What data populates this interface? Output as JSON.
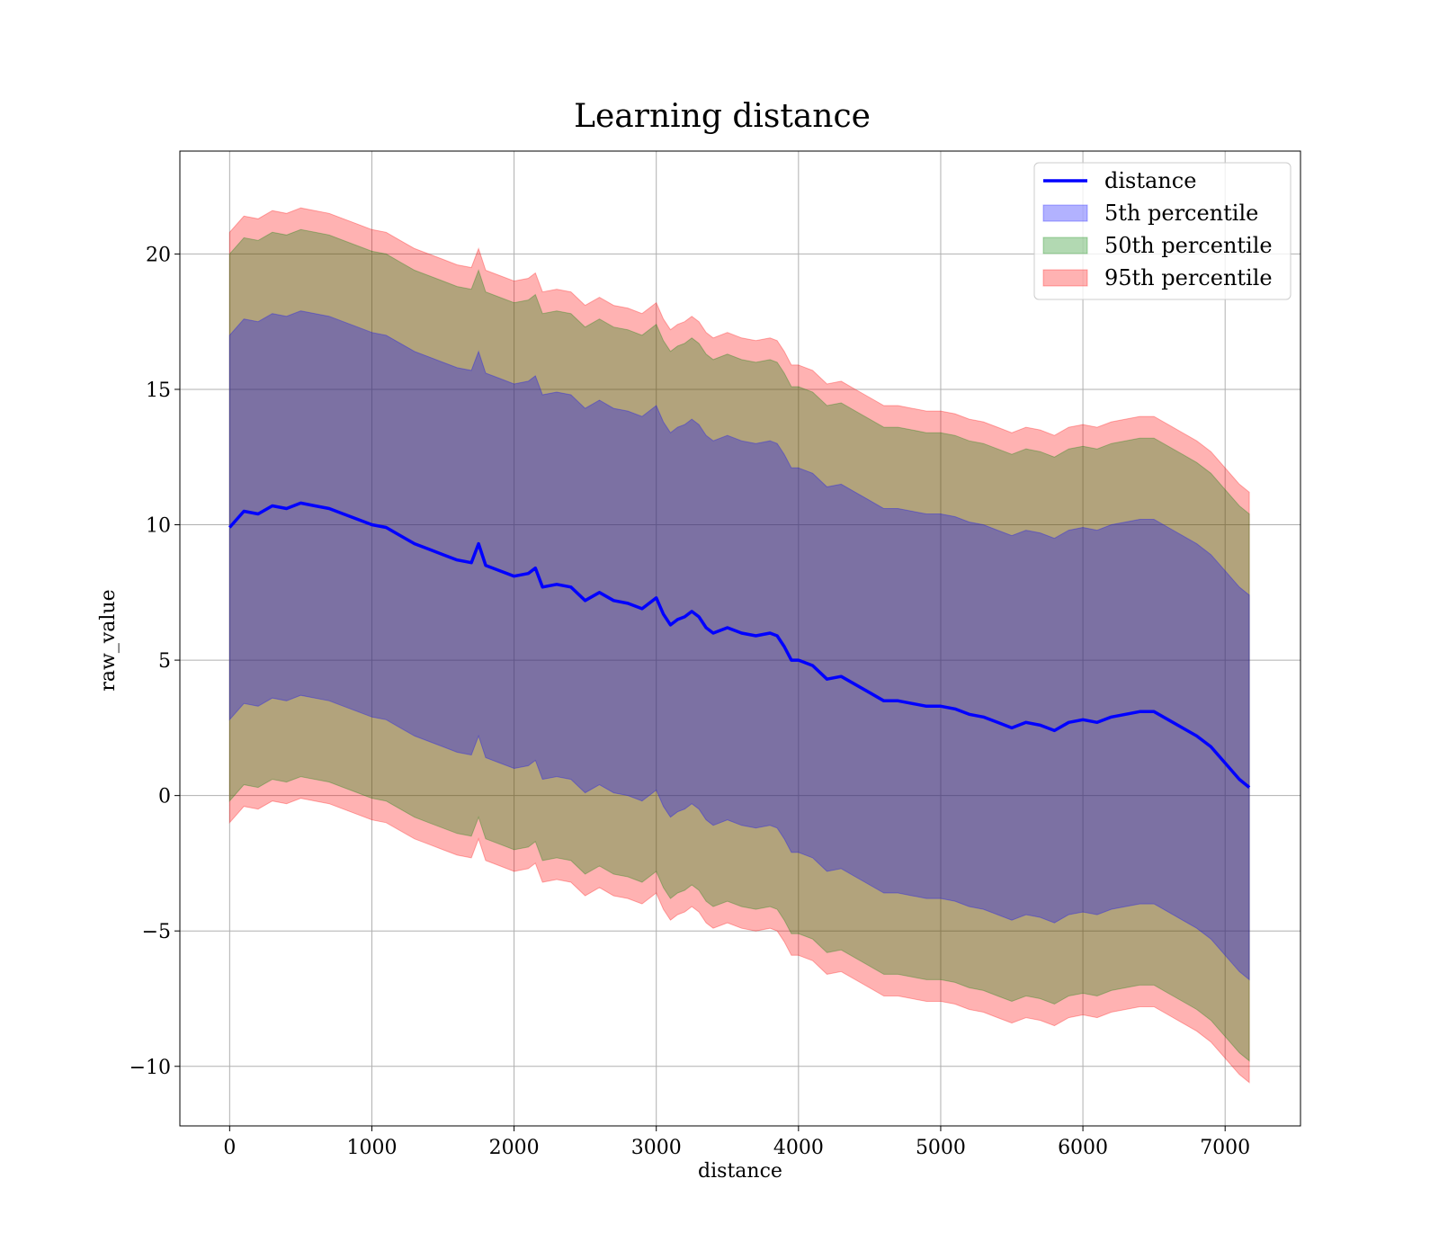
{
  "chart_data": {
    "type": "area",
    "title": "Learning distance",
    "xlabel": "distance",
    "ylabel": "raw_value",
    "xlim": [
      -350,
      7530
    ],
    "ylim": [
      -12.2,
      23.8
    ],
    "xticks": [
      0,
      1000,
      2000,
      3000,
      4000,
      5000,
      6000,
      7000
    ],
    "yticks": [
      -10,
      -5,
      0,
      5,
      10,
      15,
      20
    ],
    "xtick_labels": [
      "0",
      "1000",
      "2000",
      "3000",
      "4000",
      "5000",
      "6000",
      "7000"
    ],
    "ytick_labels": [
      "−10",
      "−5",
      "0",
      "5",
      "10",
      "15",
      "20"
    ],
    "grid": true,
    "legend_position": "upper right",
    "x": [
      0,
      100,
      200,
      300,
      400,
      500,
      600,
      700,
      800,
      900,
      1000,
      1100,
      1200,
      1300,
      1400,
      1500,
      1600,
      1700,
      1750,
      1800,
      1900,
      2000,
      2100,
      2150,
      2200,
      2300,
      2400,
      2500,
      2600,
      2700,
      2800,
      2900,
      3000,
      3050,
      3100,
      3150,
      3200,
      3250,
      3300,
      3350,
      3400,
      3500,
      3600,
      3700,
      3800,
      3850,
      3900,
      3950,
      4000,
      4100,
      4200,
      4300,
      4400,
      4500,
      4600,
      4700,
      4800,
      4900,
      5000,
      5100,
      5200,
      5300,
      5400,
      5500,
      5600,
      5700,
      5800,
      5900,
      6000,
      6100,
      6200,
      6300,
      6400,
      6500,
      6600,
      6700,
      6800,
      6900,
      7000,
      7100,
      7170
    ],
    "series": [
      {
        "name": "distance",
        "kind": "line",
        "color": "#0000ff",
        "values": [
          9.9,
          10.5,
          10.4,
          10.7,
          10.6,
          10.8,
          10.7,
          10.6,
          10.4,
          10.2,
          10.0,
          9.9,
          9.6,
          9.3,
          9.1,
          8.9,
          8.7,
          8.6,
          9.3,
          8.5,
          8.3,
          8.1,
          8.2,
          8.4,
          7.7,
          7.8,
          7.7,
          7.2,
          7.5,
          7.2,
          7.1,
          6.9,
          7.3,
          6.7,
          6.3,
          6.5,
          6.6,
          6.8,
          6.6,
          6.2,
          6.0,
          6.2,
          6.0,
          5.9,
          6.0,
          5.9,
          5.5,
          5.0,
          5.0,
          4.8,
          4.3,
          4.4,
          4.1,
          3.8,
          3.5,
          3.5,
          3.4,
          3.3,
          3.3,
          3.2,
          3.0,
          2.9,
          2.7,
          2.5,
          2.7,
          2.6,
          2.4,
          2.7,
          2.8,
          2.7,
          2.9,
          3.0,
          3.1,
          3.1,
          2.8,
          2.5,
          2.2,
          1.8,
          1.2,
          0.6,
          0.3
        ]
      },
      {
        "name": "5th percentile",
        "kind": "band",
        "color": "#0000ff",
        "upper_offset": 7.1,
        "lower_offset": -7.1
      },
      {
        "name": "50th percentile",
        "kind": "band",
        "color": "#008000",
        "upper_offset": 10.1,
        "lower_offset": -10.1
      },
      {
        "name": "95th percentile",
        "kind": "band",
        "color": "#ff0000",
        "upper_offset": 10.9,
        "lower_offset": -10.9
      }
    ]
  }
}
